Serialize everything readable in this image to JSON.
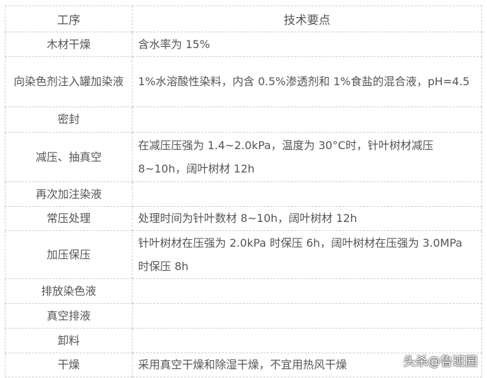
{
  "headers": [
    "工序",
    "技术要点"
  ],
  "rows": [
    {
      "step": "木材干燥",
      "detail": "含水率为 15%"
    },
    {
      "step": "向染色剂注入罐加染液",
      "detail": "1%水溶酸性染料，内含 0.5%渗透剂和 1%食盐的混合液，pH=4.5"
    },
    {
      "step": "密封",
      "detail": ""
    },
    {
      "step": "减压、抽真空",
      "detail": "在减压压强为 1.4~2.0kPa，温度为 30°C时，针叶树材减压 8~10h，阔叶树材 12h"
    },
    {
      "step": "再次加注染液",
      "detail": ""
    },
    {
      "step": "常压处理",
      "detail": "处理时间为针叶数材 8~10h，阔叶树材 12h"
    },
    {
      "step": "加压保压",
      "detail": "针叶树材在压强为 2.0kPa 时保压 6h，阔叶树材在压强为 3.0MPa 时保压 8h"
    },
    {
      "step": "排放染色液",
      "detail": ""
    },
    {
      "step": "真空排液",
      "detail": ""
    },
    {
      "step": "卸料",
      "detail": ""
    },
    {
      "step": "干燥",
      "detail": "采用真空干燥和除湿干燥，不宜用热风干燥"
    }
  ],
  "watermark": "头杀@鲁班园"
}
